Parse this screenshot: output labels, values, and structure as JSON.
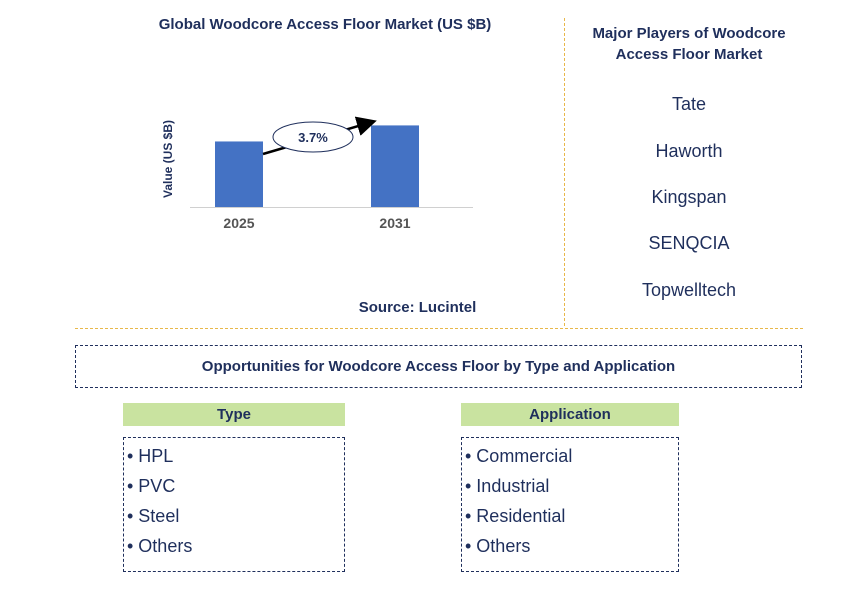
{
  "chart_data": {
    "type": "bar",
    "title": "Global Woodcore Access Floor Market (US $B)",
    "ylabel": "Value (US $B)",
    "categories": [
      "2025",
      "2031"
    ],
    "values": [
      0.245,
      0.305
    ],
    "ylim": [
      0,
      0.4
    ],
    "annotation": "3.7%",
    "bar_color": "#4472c4"
  },
  "source": "Source: Lucintel",
  "players": {
    "title": "Major Players of Woodcore Access Floor Market",
    "items": [
      "Tate",
      "Haworth",
      "Kingspan",
      "SENQCIA",
      "Topwelltech"
    ]
  },
  "opportunities": {
    "title": "Opportunities for Woodcore Access Floor by Type and Application",
    "type": {
      "heading": "Type",
      "items": [
        "• HPL",
        "• PVC",
        "• Steel",
        "• Others"
      ]
    },
    "application": {
      "heading": "Application",
      "items": [
        "• Commercial",
        "• Industrial",
        "• Residential",
        "• Others"
      ]
    }
  }
}
